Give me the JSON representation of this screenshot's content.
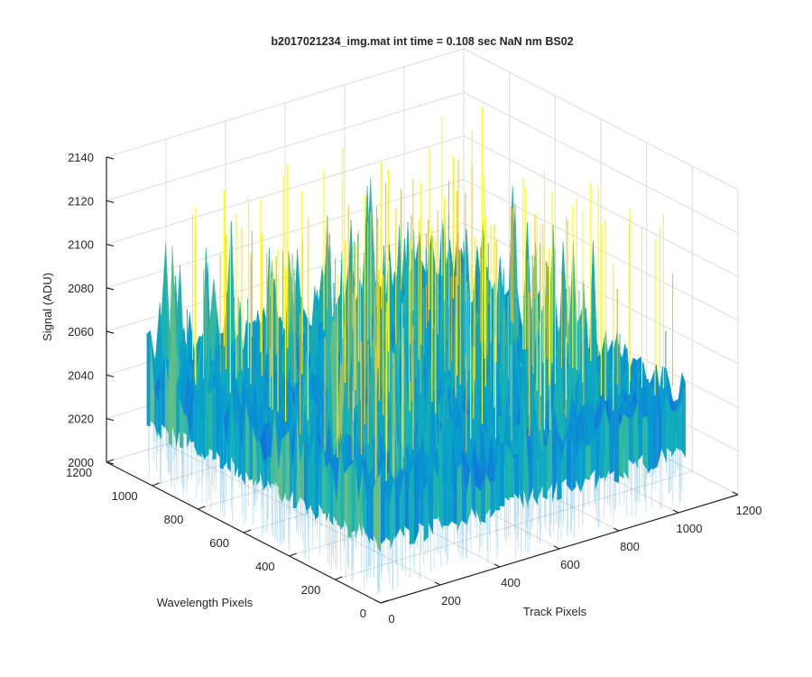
{
  "chart_data": {
    "type": "surface",
    "title": "b2017021234_img.mat int time = 0.108 sec  NaN nm BS02",
    "xlabel": "Track Pixels",
    "ylabel": "Wavelength Pixels",
    "zlabel": "Signal (ADU)",
    "xlim": [
      0,
      1200
    ],
    "ylim": [
      0,
      1200
    ],
    "zlim": [
      2000,
      2140
    ],
    "x_ticks": [
      "0",
      "200",
      "400",
      "600",
      "800",
      "1000",
      "1200"
    ],
    "y_ticks": [
      "0",
      "200",
      "400",
      "600",
      "800",
      "1000",
      "1200"
    ],
    "z_ticks": [
      "2000",
      "2020",
      "2040",
      "2060",
      "2080",
      "2100",
      "2120",
      "2140"
    ],
    "surface": {
      "x_extent": [
        0,
        1024
      ],
      "y_extent": [
        0,
        1024
      ],
      "baseline": 2050,
      "min": 2000,
      "max": 2140,
      "colormap": "parula"
    },
    "grid": true,
    "box": "open 3-D axes",
    "view": "azimuth -37.5, elevation 30"
  }
}
